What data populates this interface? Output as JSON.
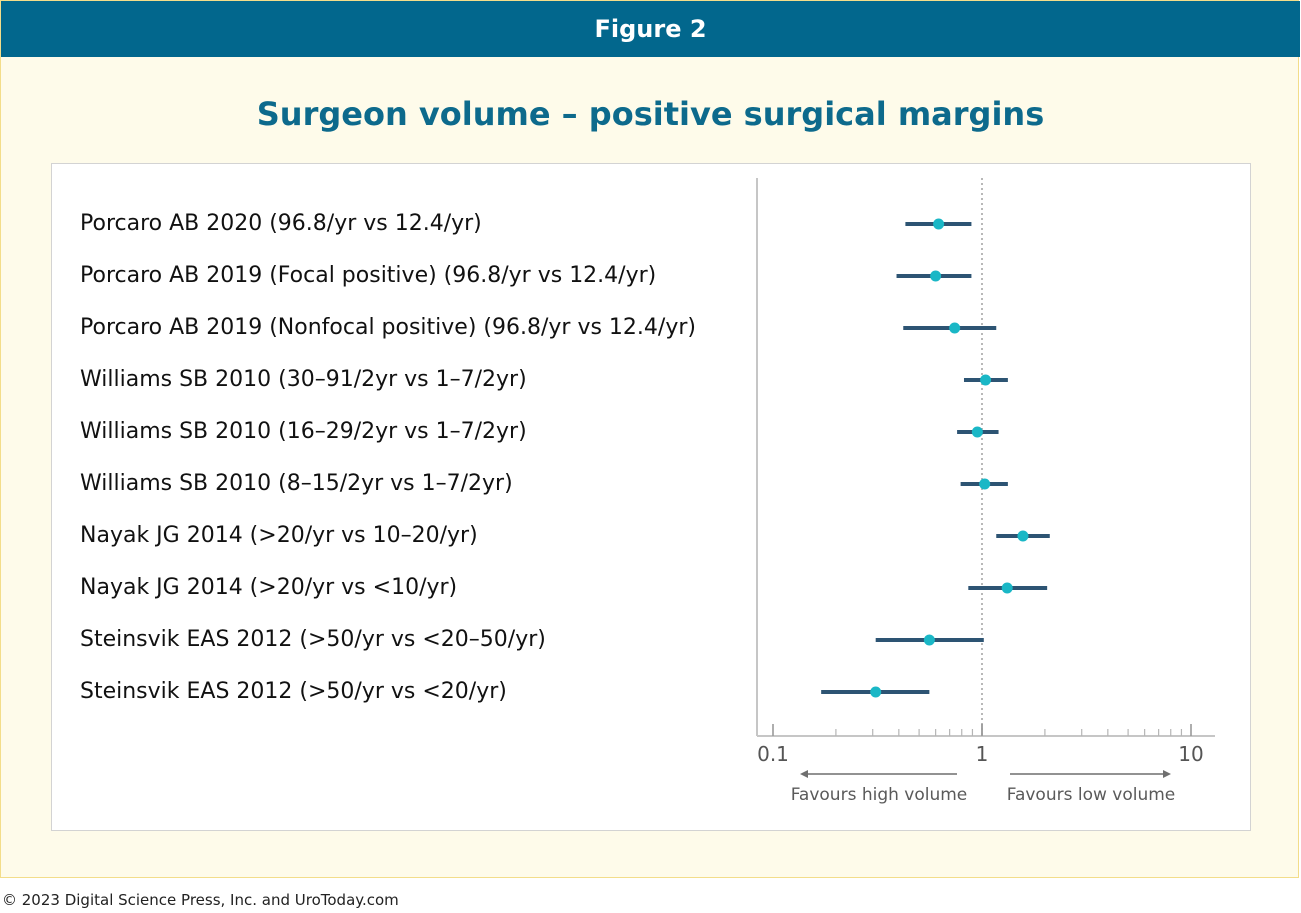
{
  "header": {
    "banner": "Figure 2"
  },
  "footer": {
    "copyright": "© 2023 Digital Science Press, Inc. and UroToday.com"
  },
  "colors": {
    "banner": "#02678d",
    "title": "#0d6a8c",
    "ci_line": "#2d5473",
    "point": "#1ab7c6",
    "background": "#fefbea",
    "border": "#f3dd8a"
  },
  "chart_data": {
    "type": "forest",
    "title": "Surgeon volume – positive surgical margins",
    "x_scale": "log",
    "xlim": [
      0.09,
      12
    ],
    "reference_line": 1,
    "x_ticks": [
      "0.1",
      "1",
      "10"
    ],
    "direction_labels": {
      "left": "Favours high volume",
      "right": "Favours low volume"
    },
    "studies": [
      {
        "label": "Porcaro AB 2020 (96.8/yr vs 12.4/yr)",
        "estimate": 0.62,
        "ci_low": 0.43,
        "ci_high": 0.89
      },
      {
        "label": "Porcaro AB 2019 (Focal positive) (96.8/yr vs 12.4/yr)",
        "estimate": 0.6,
        "ci_low": 0.39,
        "ci_high": 0.89
      },
      {
        "label": "Porcaro AB 2019 (Nonfocal positive) (96.8/yr vs 12.4/yr)",
        "estimate": 0.74,
        "ci_low": 0.42,
        "ci_high": 1.17
      },
      {
        "label": "Williams SB 2010 (30–91/2yr vs 1–7/2yr)",
        "estimate": 1.04,
        "ci_low": 0.82,
        "ci_high": 1.33
      },
      {
        "label": "Williams SB 2010 (16–29/2yr vs 1–7/2yr)",
        "estimate": 0.95,
        "ci_low": 0.76,
        "ci_high": 1.2
      },
      {
        "label": "Williams SB 2010 (8–15/2yr vs 1–7/2yr)",
        "estimate": 1.03,
        "ci_low": 0.79,
        "ci_high": 1.33
      },
      {
        "label": "Nayak JG 2014 (>20/yr vs 10–20/yr)",
        "estimate": 1.57,
        "ci_low": 1.17,
        "ci_high": 2.11
      },
      {
        "label": "Nayak JG 2014 (>20/yr vs <10/yr)",
        "estimate": 1.32,
        "ci_low": 0.86,
        "ci_high": 2.05
      },
      {
        "label": "Steinsvik EAS 2012 (>50/yr vs <20–50/yr)",
        "estimate": 0.56,
        "ci_low": 0.31,
        "ci_high": 1.02
      },
      {
        "label": "Steinsvik EAS 2012 (>50/yr vs <20/yr)",
        "estimate": 0.31,
        "ci_low": 0.17,
        "ci_high": 0.56
      }
    ]
  }
}
